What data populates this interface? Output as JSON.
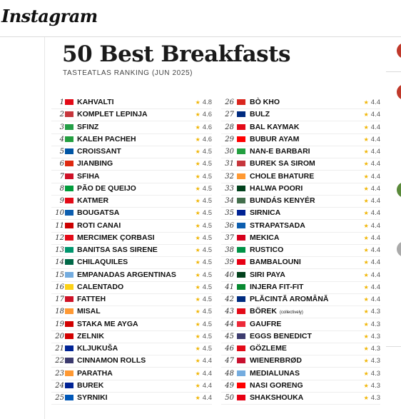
{
  "header": {
    "logo": "Instagram"
  },
  "post": {
    "title": "50 Best Breakfasts",
    "subtitle": "TASTEATLAS RANKING (JUN 2025)",
    "rows": [
      {
        "rank": 1,
        "name": "KAHVALTI",
        "rating": 4.8
      },
      {
        "rank": 2,
        "name": "KOMPLET LEPINJA",
        "rating": 4.6
      },
      {
        "rank": 3,
        "name": "SFINZ",
        "rating": 4.6
      },
      {
        "rank": 4,
        "name": "KALEH PACHEH",
        "rating": 4.6
      },
      {
        "rank": 5,
        "name": "CROISSANT",
        "rating": 4.5
      },
      {
        "rank": 6,
        "name": "JIANBING",
        "rating": 4.5
      },
      {
        "rank": 7,
        "name": "SFIHA",
        "rating": 4.5
      },
      {
        "rank": 8,
        "name": "PÃO DE QUEIJO",
        "rating": 4.5
      },
      {
        "rank": 9,
        "name": "KATMER",
        "rating": 4.5
      },
      {
        "rank": 10,
        "name": "BOUGATSA",
        "rating": 4.5
      },
      {
        "rank": 11,
        "name": "ROTI CANAI",
        "rating": 4.5
      },
      {
        "rank": 12,
        "name": "MERCIMEK ÇORBASI",
        "rating": 4.5
      },
      {
        "rank": 13,
        "name": "BANITSA SAS SIRENE",
        "rating": 4.5
      },
      {
        "rank": 14,
        "name": "CHILAQUILES",
        "rating": 4.5
      },
      {
        "rank": 15,
        "name": "EMPANADAS ARGENTINAS",
        "rating": 4.5
      },
      {
        "rank": 16,
        "name": "CALENTADO",
        "rating": 4.5
      },
      {
        "rank": 17,
        "name": "FATTEH",
        "rating": 4.5
      },
      {
        "rank": 18,
        "name": "MISAL",
        "rating": 4.5
      },
      {
        "rank": 19,
        "name": "STAKA ME AYGA",
        "rating": 4.5
      },
      {
        "rank": 20,
        "name": "ZELNIK",
        "rating": 4.5
      },
      {
        "rank": 21,
        "name": "KLJUKUŠA",
        "rating": 4.5
      },
      {
        "rank": 22,
        "name": "CINNAMON ROLLS",
        "rating": 4.4
      },
      {
        "rank": 23,
        "name": "PARATHA",
        "rating": 4.4
      },
      {
        "rank": 24,
        "name": "BUREK",
        "rating": 4.4
      },
      {
        "rank": 25,
        "name": "SYRNIKI",
        "rating": 4.4
      },
      {
        "rank": 26,
        "name": "BÒ KHO",
        "rating": 4.4
      },
      {
        "rank": 27,
        "name": "BULZ",
        "rating": 4.4
      },
      {
        "rank": 28,
        "name": "BAL KAYMAK",
        "rating": 4.4
      },
      {
        "rank": 29,
        "name": "BUBUR AYAM",
        "rating": 4.4
      },
      {
        "rank": 30,
        "name": "NAN-E BARBARI",
        "rating": 4.4
      },
      {
        "rank": 31,
        "name": "BUREK SA SIROM",
        "rating": 4.4
      },
      {
        "rank": 32,
        "name": "CHOLE BHATURE",
        "rating": 4.4
      },
      {
        "rank": 33,
        "name": "HALWA POORI",
        "rating": 4.4
      },
      {
        "rank": 34,
        "name": "BUNDÁS KENYÉR",
        "rating": 4.4
      },
      {
        "rank": 35,
        "name": "SIRNICA",
        "rating": 4.4
      },
      {
        "rank": 36,
        "name": "STRAPATSADA",
        "rating": 4.4
      },
      {
        "rank": 37,
        "name": "MEKICA",
        "rating": 4.4
      },
      {
        "rank": 38,
        "name": "RUSTICO",
        "rating": 4.4
      },
      {
        "rank": 39,
        "name": "BAMBALOUNI",
        "rating": 4.4
      },
      {
        "rank": 40,
        "name": "SIRI PAYA",
        "rating": 4.4
      },
      {
        "rank": 41,
        "name": "INJERA FIT-FIT",
        "rating": 4.4
      },
      {
        "rank": 42,
        "name": "PLĂCINTĂ AROMÂNĂ",
        "rating": 4.4
      },
      {
        "rank": 43,
        "name": "BÖREK",
        "note": "(collectively)",
        "rating": 4.3
      },
      {
        "rank": 44,
        "name": "GAUFRE",
        "rating": 4.3
      },
      {
        "rank": 45,
        "name": "EGGS BENEDICT",
        "rating": 4.3
      },
      {
        "rank": 46,
        "name": "GÖZLEME",
        "rating": 4.3
      },
      {
        "rank": 47,
        "name": "WIENERBRØD",
        "rating": 4.3
      },
      {
        "rank": 48,
        "name": "MEDIALUNAS",
        "rating": 4.3
      },
      {
        "rank": 49,
        "name": "NASI GORENG",
        "rating": 4.3
      },
      {
        "rank": 50,
        "name": "SHAKSHOUKA",
        "rating": 4.3
      }
    ]
  }
}
